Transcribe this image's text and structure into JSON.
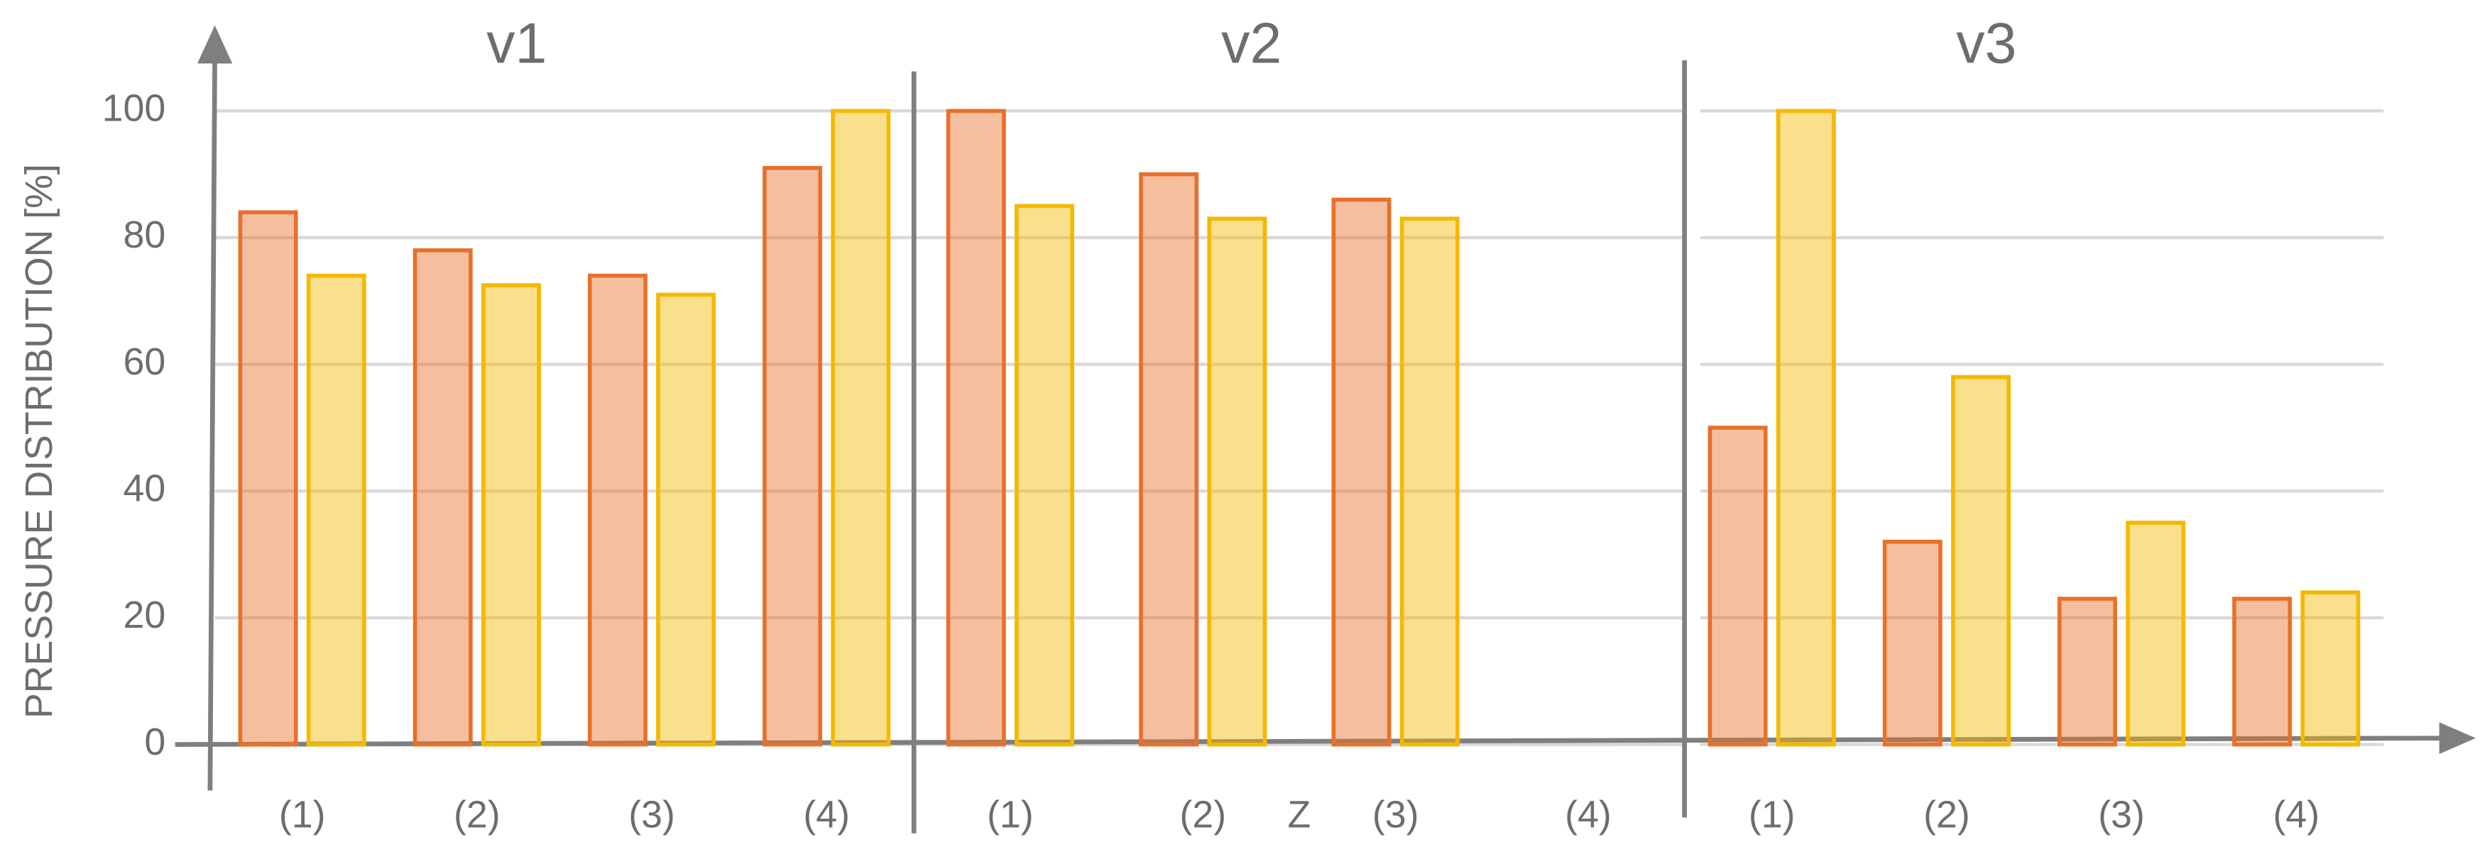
{
  "chart_data": [
    {
      "type": "bar",
      "title": "v1",
      "y_label": "PRESSURE DISTRIBUTION [%]",
      "categories": [
        "(1)",
        "(2)",
        "(3)",
        "(4)"
      ],
      "series": [
        {
          "color": "#e8702a",
          "values": [
            84,
            78,
            74,
            91
          ]
        },
        {
          "color": "#f5b800",
          "values": [
            74,
            72.5,
            71,
            100
          ]
        }
      ],
      "ylim": [
        0,
        112
      ],
      "yticks": [
        0,
        20,
        40,
        60,
        80,
        100
      ],
      "grid": true
    },
    {
      "type": "bar",
      "title": "v2",
      "x_label": "Z",
      "categories": [
        "(1)",
        "(2)",
        "(3)",
        "(4)"
      ],
      "series": [
        {
          "color": "#e8702a",
          "values": [
            100,
            90,
            86,
            null
          ]
        },
        {
          "color": "#f5b800",
          "values": [
            85,
            83,
            83,
            null
          ]
        }
      ],
      "ylim": [
        0,
        112
      ],
      "grid": true
    },
    {
      "type": "bar",
      "title": "v3",
      "categories": [
        "(1)",
        "(2)",
        "(3)",
        "(4)"
      ],
      "series": [
        {
          "color": "#e8702a",
          "values": [
            50,
            32,
            23,
            23
          ]
        },
        {
          "color": "#f5b800",
          "values": [
            100,
            58,
            35,
            24
          ]
        }
      ],
      "ylim": [
        0,
        112
      ],
      "grid": true
    }
  ]
}
